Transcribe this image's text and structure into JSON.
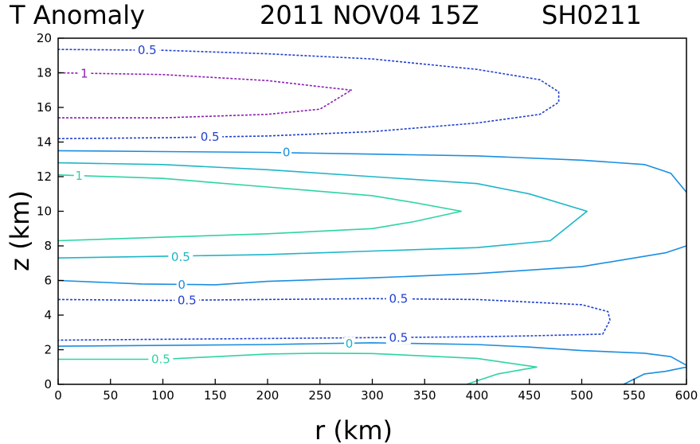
{
  "chart_data": {
    "type": "contour",
    "title": "T Anomaly",
    "datetime": "2011 NOV04 15Z",
    "storm_id": "SH0211",
    "xlabel": "r (km)",
    "ylabel": "z (km)",
    "xlim": [
      0,
      600
    ],
    "ylim": [
      0,
      20
    ],
    "xticks": [
      "0",
      "50",
      "100",
      "150",
      "200",
      "250",
      "300",
      "350",
      "400",
      "450",
      "500",
      "550",
      "600"
    ],
    "yticks": [
      "0",
      "2",
      "4",
      "6",
      "8",
      "10",
      "12",
      "14",
      "16",
      "18",
      "20"
    ],
    "contours": [
      {
        "level": "1",
        "color": "#2ed3a4",
        "dashed": false,
        "points": [
          [
            0,
            8.3
          ],
          [
            100,
            8.5
          ],
          [
            200,
            8.7
          ],
          [
            300,
            9.0
          ],
          [
            340,
            9.4
          ],
          [
            385,
            10.0
          ],
          [
            340,
            10.5
          ],
          [
            300,
            10.9
          ],
          [
            200,
            11.4
          ],
          [
            100,
            11.9
          ],
          [
            0,
            12.1
          ]
        ]
      },
      {
        "level": "0.5",
        "color": "#1eb6c8",
        "dashed": false,
        "points": [
          [
            0,
            7.3
          ],
          [
            100,
            7.4
          ],
          [
            200,
            7.5
          ],
          [
            300,
            7.7
          ],
          [
            400,
            7.9
          ],
          [
            470,
            8.3
          ],
          [
            505,
            10.0
          ],
          [
            450,
            11.0
          ],
          [
            400,
            11.6
          ],
          [
            300,
            12.0
          ],
          [
            200,
            12.4
          ],
          [
            100,
            12.7
          ],
          [
            0,
            12.8
          ]
        ]
      },
      {
        "level": "0",
        "color": "#1a8ee0",
        "dashed": false,
        "points": [
          [
            0,
            13.5
          ],
          [
            100,
            13.45
          ],
          [
            200,
            13.4
          ],
          [
            300,
            13.3
          ],
          [
            400,
            13.2
          ],
          [
            500,
            12.95
          ],
          [
            560,
            12.7
          ],
          [
            585,
            12.2
          ],
          [
            600,
            11.1
          ]
        ]
      },
      {
        "level": "0",
        "color": "#1a8ee0",
        "dashed": false,
        "points": [
          [
            0,
            6.0
          ],
          [
            80,
            5.8
          ],
          [
            150,
            5.75
          ],
          [
            200,
            5.95
          ],
          [
            300,
            6.15
          ],
          [
            400,
            6.4
          ],
          [
            500,
            6.8
          ],
          [
            580,
            7.6
          ],
          [
            600,
            8.0
          ]
        ]
      },
      {
        "level": "0",
        "color": "#1a8ee0",
        "dashed": false,
        "points": [
          [
            0,
            2.2
          ],
          [
            100,
            2.25
          ],
          [
            200,
            2.3
          ],
          [
            300,
            2.4
          ],
          [
            400,
            2.3
          ],
          [
            450,
            2.15
          ],
          [
            500,
            1.95
          ],
          [
            560,
            1.8
          ],
          [
            585,
            1.6
          ],
          [
            600,
            1.1
          ]
        ]
      },
      {
        "level": "0",
        "color": "#1a8ee0",
        "dashed": false,
        "points": [
          [
            540,
            0.0
          ],
          [
            560,
            0.6
          ],
          [
            580,
            0.75
          ],
          [
            600,
            1.0
          ]
        ]
      },
      {
        "level": "0.5",
        "color": "#2ed3a4",
        "dashed": false,
        "points": [
          [
            0,
            1.45
          ],
          [
            100,
            1.45
          ],
          [
            200,
            1.75
          ],
          [
            250,
            1.8
          ],
          [
            300,
            1.78
          ],
          [
            400,
            1.5
          ],
          [
            457,
            1.0
          ],
          [
            420,
            0.6
          ],
          [
            390,
            0.0
          ]
        ]
      },
      {
        "level": "-0.5",
        "color": "#2040d0",
        "dashed": true,
        "points": [
          [
            0,
            4.9
          ],
          [
            100,
            4.85
          ],
          [
            200,
            4.9
          ],
          [
            300,
            4.95
          ],
          [
            400,
            4.9
          ],
          [
            500,
            4.6
          ],
          [
            525,
            4.2
          ],
          [
            527,
            3.7
          ],
          [
            520,
            2.9
          ],
          [
            450,
            2.8
          ],
          [
            400,
            2.75
          ],
          [
            300,
            2.7
          ],
          [
            200,
            2.65
          ],
          [
            100,
            2.6
          ],
          [
            0,
            2.55
          ]
        ]
      },
      {
        "level": "-0.5",
        "color": "#2040d0",
        "dashed": true,
        "points": [
          [
            0,
            14.2
          ],
          [
            100,
            14.25
          ],
          [
            200,
            14.35
          ],
          [
            300,
            14.6
          ],
          [
            400,
            15.1
          ],
          [
            460,
            15.6
          ],
          [
            478,
            16.3
          ],
          [
            478,
            16.9
          ],
          [
            460,
            17.6
          ],
          [
            400,
            18.2
          ],
          [
            300,
            18.8
          ],
          [
            200,
            19.1
          ],
          [
            100,
            19.3
          ],
          [
            0,
            19.35
          ]
        ]
      },
      {
        "level": "-1",
        "color": "#8a1eb4",
        "dashed": true,
        "points": [
          [
            0,
            15.4
          ],
          [
            100,
            15.4
          ],
          [
            200,
            15.6
          ],
          [
            250,
            15.9
          ],
          [
            280,
            17.0
          ],
          [
            250,
            17.2
          ],
          [
            200,
            17.55
          ],
          [
            100,
            17.9
          ],
          [
            0,
            18.0
          ]
        ]
      }
    ],
    "contour_labels": [
      {
        "text": "1",
        "color": "#2ed3a4",
        "x": 20,
        "y": 12.05
      },
      {
        "text": "0.5",
        "color": "#1eb6c8",
        "x": 117,
        "y": 7.35
      },
      {
        "text": "0",
        "color": "#1a8ee0",
        "x": 218,
        "y": 13.4
      },
      {
        "text": "0",
        "color": "#1a8ee0",
        "x": 118,
        "y": 5.75
      },
      {
        "text": "0",
        "color": "#1eb6c8",
        "x": 278,
        "y": 2.35
      },
      {
        "text": "0.5",
        "color": "#2ed3a4",
        "x": 98,
        "y": 1.45
      },
      {
        "text": "0.5",
        "color": "#2040d0",
        "x": 123,
        "y": 4.85
      },
      {
        "text": "0.5",
        "color": "#2040d0",
        "x": 325,
        "y": 4.95
      },
      {
        "text": "0.5",
        "color": "#2040d0",
        "x": 325,
        "y": 2.7
      },
      {
        "text": "0.5",
        "color": "#2040d0",
        "x": 145,
        "y": 14.3
      },
      {
        "text": "0.5",
        "color": "#2040d0",
        "x": 85,
        "y": 19.3
      },
      {
        "text": "1",
        "color": "#8a1eb4",
        "x": 25,
        "y": 17.95
      }
    ]
  }
}
